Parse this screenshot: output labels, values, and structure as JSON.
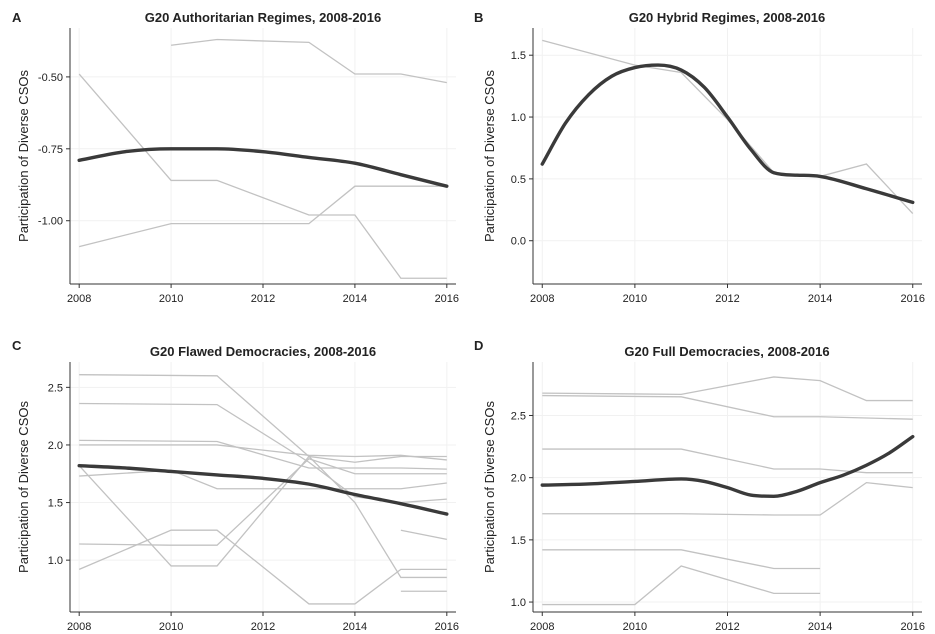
{
  "chart_data": [
    {
      "type": "line",
      "panel_label": "A",
      "title": "G20 Authoritarian Regimes, 2008-2016",
      "xlabel": "",
      "ylabel": "Participation of Diverse CSOs",
      "xlim": [
        2007.8,
        2016.2
      ],
      "ylim": [
        -1.22,
        -0.33
      ],
      "xticks": [
        2008,
        2010,
        2012,
        2014,
        2016
      ],
      "yticks": [
        -1.0,
        -0.75,
        -0.5
      ],
      "ytick_labels": [
        "-1.00",
        "-0.75",
        "-0.50"
      ],
      "series": [
        {
          "role": "country",
          "x": [
            2010,
            2011,
            2013,
            2014,
            2015,
            2016
          ],
          "y": [
            -0.39,
            -0.37,
            -0.38,
            -0.49,
            -0.49,
            -0.52
          ]
        },
        {
          "role": "country",
          "x": [
            2008,
            2010,
            2011,
            2013,
            2014,
            2015,
            2016
          ],
          "y": [
            -0.49,
            -0.86,
            -0.86,
            -0.98,
            -0.98,
            -1.2,
            -1.2
          ]
        },
        {
          "role": "country",
          "x": [
            2008,
            2010,
            2011,
            2013,
            2014,
            2015,
            2016
          ],
          "y": [
            -1.09,
            -1.01,
            -1.01,
            -1.01,
            -0.88,
            -0.88,
            -0.88
          ]
        },
        {
          "role": "trend",
          "x": [
            2008,
            2009,
            2010,
            2011,
            2012,
            2013,
            2014,
            2015,
            2016
          ],
          "y": [
            -0.79,
            -0.76,
            -0.75,
            -0.75,
            -0.76,
            -0.78,
            -0.8,
            -0.84,
            -0.88
          ]
        }
      ]
    },
    {
      "type": "line",
      "panel_label": "B",
      "title": "G20 Hybrid Regimes, 2008-2016",
      "xlabel": "",
      "ylabel": "Participation of Diverse CSOs",
      "xlim": [
        2007.8,
        2016.2
      ],
      "ylim": [
        -0.35,
        1.72
      ],
      "xticks": [
        2008,
        2010,
        2012,
        2014,
        2016
      ],
      "yticks": [
        0.0,
        0.5,
        1.0,
        1.5
      ],
      "ytick_labels": [
        "0.0",
        "0.5",
        "1.0",
        "1.5"
      ],
      "series": [
        {
          "role": "country",
          "x": [
            2008,
            2010,
            2011,
            2012,
            2013,
            2014,
            2015,
            2016
          ],
          "y": [
            1.62,
            1.42,
            1.36,
            0.98,
            0.55,
            0.52,
            0.62,
            0.22
          ]
        },
        {
          "role": "trend",
          "x": [
            2008,
            2008.5,
            2009,
            2009.5,
            2010,
            2010.5,
            2011,
            2011.5,
            2012,
            2012.5,
            2013,
            2013.5,
            2014,
            2015,
            2016
          ],
          "y": [
            0.62,
            0.95,
            1.18,
            1.33,
            1.4,
            1.42,
            1.38,
            1.24,
            1.0,
            0.74,
            0.55,
            0.53,
            0.52,
            0.42,
            0.31
          ]
        }
      ]
    },
    {
      "type": "line",
      "panel_label": "C",
      "title": "G20 Flawed Democracies, 2008-2016",
      "xlabel": "",
      "ylabel": "Participation of Diverse CSOs",
      "xlim": [
        2007.8,
        2016.2
      ],
      "ylim": [
        0.55,
        2.72
      ],
      "xticks": [
        2008,
        2010,
        2012,
        2014,
        2016
      ],
      "yticks": [
        1.0,
        1.5,
        2.0,
        2.5
      ],
      "ytick_labels": [
        "1.0",
        "1.5",
        "2.0",
        "2.5"
      ],
      "series": [
        {
          "role": "country",
          "x": [
            2008,
            2011,
            2013,
            2014,
            2015,
            2016
          ],
          "y": [
            2.61,
            2.6,
            1.9,
            1.85,
            1.9,
            1.9
          ]
        },
        {
          "role": "country",
          "x": [
            2008,
            2011,
            2013,
            2014,
            2015,
            2016
          ],
          "y": [
            2.36,
            2.35,
            1.85,
            1.55,
            1.5,
            1.53
          ]
        },
        {
          "role": "country",
          "x": [
            2008,
            2011,
            2013,
            2014,
            2015,
            2016
          ],
          "y": [
            2.04,
            2.03,
            1.8,
            1.8,
            1.8,
            1.79
          ]
        },
        {
          "role": "country",
          "x": [
            2008,
            2011,
            2013,
            2014,
            2015,
            2016
          ],
          "y": [
            2.0,
            2.0,
            1.91,
            1.9,
            1.91,
            1.87
          ]
        },
        {
          "role": "country",
          "x": [
            2008,
            2010,
            2011,
            2012,
            2013,
            2014,
            2015,
            2016
          ],
          "y": [
            1.73,
            1.78,
            1.62,
            1.62,
            1.62,
            1.62,
            1.62,
            1.67
          ]
        },
        {
          "role": "country",
          "x": [
            2008,
            2010,
            2011,
            2013,
            2014,
            2015,
            2016
          ],
          "y": [
            1.14,
            1.13,
            1.13,
            1.88,
            1.75,
            1.75,
            1.75
          ]
        },
        {
          "role": "country",
          "x": [
            2008,
            2010,
            2011,
            2013,
            2014,
            2015,
            2016
          ],
          "y": [
            0.92,
            1.26,
            1.26,
            0.62,
            0.62,
            0.92,
            0.92
          ]
        },
        {
          "role": "country",
          "x": [
            2008,
            2010,
            2011,
            2013,
            2014,
            2015,
            2016
          ],
          "y": [
            1.82,
            0.95,
            0.95,
            1.9,
            1.5,
            0.85,
            0.85
          ]
        },
        {
          "role": "country",
          "x": [
            2015,
            2016
          ],
          "y": [
            1.26,
            1.18
          ]
        },
        {
          "role": "country",
          "x": [
            2015,
            2016
          ],
          "y": [
            0.73,
            0.73
          ]
        },
        {
          "role": "trend",
          "x": [
            2008,
            2009,
            2010,
            2011,
            2012,
            2013,
            2014,
            2015,
            2016
          ],
          "y": [
            1.82,
            1.8,
            1.77,
            1.74,
            1.71,
            1.66,
            1.57,
            1.49,
            1.4
          ]
        }
      ]
    },
    {
      "type": "line",
      "panel_label": "D",
      "title": "G20 Full Democracies, 2008-2016",
      "xlabel": "",
      "ylabel": "Participation of Diverse CSOs",
      "xlim": [
        2007.8,
        2016.2
      ],
      "ylim": [
        0.92,
        2.93
      ],
      "xticks": [
        2008,
        2010,
        2012,
        2014,
        2016
      ],
      "yticks": [
        1.0,
        1.5,
        2.0,
        2.5
      ],
      "ytick_labels": [
        "1.0",
        "1.5",
        "2.0",
        "2.5"
      ],
      "series": [
        {
          "role": "country",
          "x": [
            2008,
            2011,
            2013,
            2014,
            2015,
            2016
          ],
          "y": [
            2.68,
            2.67,
            2.81,
            2.78,
            2.62,
            2.62
          ]
        },
        {
          "role": "country",
          "x": [
            2008,
            2011,
            2013,
            2014,
            2015,
            2016
          ],
          "y": [
            2.66,
            2.65,
            2.49,
            2.49,
            2.48,
            2.47
          ]
        },
        {
          "role": "country",
          "x": [
            2008,
            2011,
            2013,
            2014,
            2015,
            2016
          ],
          "y": [
            2.23,
            2.23,
            2.07,
            2.07,
            2.04,
            2.04
          ]
        },
        {
          "role": "country",
          "x": [
            2008,
            2011,
            2013,
            2014,
            2015,
            2016
          ],
          "y": [
            1.71,
            1.71,
            1.7,
            1.7,
            1.96,
            1.92
          ]
        },
        {
          "role": "country",
          "x": [
            2008,
            2011,
            2013,
            2014
          ],
          "y": [
            1.42,
            1.42,
            1.27,
            1.27
          ]
        },
        {
          "role": "country",
          "x": [
            2008,
            2010,
            2011,
            2013,
            2014
          ],
          "y": [
            0.98,
            0.98,
            1.29,
            1.07,
            1.07
          ]
        },
        {
          "role": "trend",
          "x": [
            2008,
            2009,
            2010,
            2011,
            2011.5,
            2012,
            2012.5,
            2013,
            2013.5,
            2014,
            2014.5,
            2015,
            2015.5,
            2016
          ],
          "y": [
            1.94,
            1.95,
            1.97,
            1.99,
            1.97,
            1.92,
            1.86,
            1.85,
            1.89,
            1.96,
            2.02,
            2.1,
            2.2,
            2.33
          ]
        }
      ]
    }
  ]
}
